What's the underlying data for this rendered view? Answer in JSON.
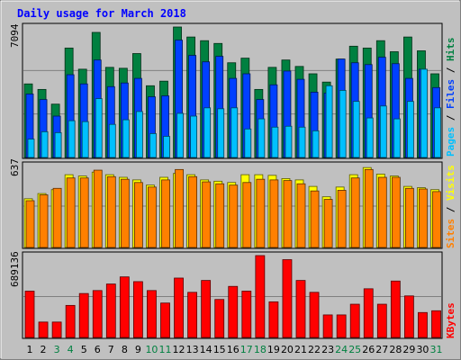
{
  "chart_data": [
    {
      "type": "bar",
      "title": "Daily usage for March 2018",
      "ylabel_parts": [
        {
          "text": "Pages",
          "color": "#00c0ff"
        },
        {
          "text": " / ",
          "color": "#000000"
        },
        {
          "text": "Files",
          "color": "#0040ff"
        },
        {
          "text": " / ",
          "color": "#000000"
        },
        {
          "text": "Hits",
          "color": "#008040"
        }
      ],
      "ymax_label": "7094",
      "ylim": [
        0,
        7094
      ],
      "categories": [
        "1",
        "2",
        "3",
        "4",
        "5",
        "6",
        "7",
        "8",
        "9",
        "10",
        "11",
        "12",
        "13",
        "14",
        "15",
        "16",
        "17",
        "18",
        "19",
        "20",
        "21",
        "22",
        "23",
        "24",
        "25",
        "26",
        "27",
        "28",
        "29",
        "30",
        "31"
      ],
      "weekend_days": [
        "3",
        "4",
        "10",
        "11",
        "17",
        "18",
        "24",
        "25",
        "31"
      ],
      "series": [
        {
          "name": "Hits",
          "color": "#008040",
          "values": [
            4000,
            3700,
            2900,
            5950,
            4800,
            6800,
            4900,
            4850,
            5650,
            3900,
            4150,
            7094,
            6550,
            6350,
            6200,
            5150,
            5400,
            3700,
            4900,
            5300,
            4950,
            4550,
            4100,
            5350,
            6050,
            5950,
            6350,
            5750,
            6550,
            5800,
            4550
          ]
        },
        {
          "name": "Files",
          "color": "#0040ff",
          "values": [
            3450,
            3150,
            2250,
            4500,
            4000,
            5300,
            3850,
            4050,
            4300,
            3300,
            3350,
            6380,
            5550,
            5200,
            5500,
            4300,
            4550,
            3150,
            3950,
            4700,
            4250,
            3550,
            3500,
            5350,
            5150,
            5050,
            5450,
            5100,
            4300,
            4800,
            3800
          ]
        },
        {
          "name": "Pages",
          "color": "#00c0ff",
          "values": [
            1000,
            1400,
            1350,
            2000,
            1950,
            3200,
            1800,
            2050,
            2500,
            1300,
            1150,
            2400,
            2250,
            2700,
            2650,
            2700,
            1550,
            2100,
            1650,
            1700,
            1650,
            1450,
            3900,
            3650,
            3050,
            2150,
            2800,
            2100,
            3050,
            4800,
            2700
          ]
        }
      ]
    },
    {
      "type": "bar",
      "ylabel_parts": [
        {
          "text": "Sites",
          "color": "#ff8000"
        },
        {
          "text": " / ",
          "color": "#000000"
        },
        {
          "text": "Visits",
          "color": "#ffff00"
        }
      ],
      "ymax_label": "637",
      "ylim": [
        0,
        637
      ],
      "categories": [
        "1",
        "2",
        "3",
        "4",
        "5",
        "6",
        "7",
        "8",
        "9",
        "10",
        "11",
        "12",
        "13",
        "14",
        "15",
        "16",
        "17",
        "18",
        "19",
        "20",
        "21",
        "22",
        "23",
        "24",
        "25",
        "26",
        "27",
        "28",
        "29",
        "30",
        "31"
      ],
      "series": [
        {
          "name": "Visits",
          "color": "#ffff00",
          "values": [
            375,
            415,
            445,
            560,
            550,
            580,
            560,
            540,
            520,
            480,
            540,
            570,
            560,
            520,
            510,
            500,
            560,
            560,
            555,
            530,
            520,
            470,
            390,
            465,
            560,
            615,
            565,
            550,
            470,
            460,
            445
          ]
        },
        {
          "name": "Sites",
          "color": "#ff8000",
          "values": [
            360,
            405,
            455,
            535,
            535,
            595,
            545,
            525,
            500,
            465,
            520,
            600,
            545,
            505,
            490,
            480,
            500,
            525,
            520,
            515,
            490,
            435,
            370,
            440,
            535,
            600,
            540,
            540,
            455,
            450,
            430
          ]
        }
      ]
    },
    {
      "type": "bar",
      "ylabel_parts": [
        {
          "text": "KBytes",
          "color": "#ff0000"
        }
      ],
      "ymax_label": "689136",
      "ylim": [
        0,
        689136
      ],
      "categories": [
        "1",
        "2",
        "3",
        "4",
        "5",
        "6",
        "7",
        "8",
        "9",
        "10",
        "11",
        "12",
        "13",
        "14",
        "15",
        "16",
        "17",
        "18",
        "19",
        "20",
        "21",
        "22",
        "23",
        "24",
        "25",
        "26",
        "27",
        "28",
        "29",
        "30",
        "31"
      ],
      "series": [
        {
          "name": "KBytes",
          "color": "#ff0000",
          "values": [
            390000,
            130000,
            130000,
            270000,
            370000,
            395000,
            450000,
            510000,
            470000,
            395000,
            290000,
            500000,
            380000,
            480000,
            320000,
            430000,
            390000,
            689136,
            300000,
            655000,
            480000,
            380000,
            190000,
            190000,
            280000,
            410000,
            280000,
            475000,
            350000,
            210000,
            225000
          ]
        }
      ]
    }
  ]
}
